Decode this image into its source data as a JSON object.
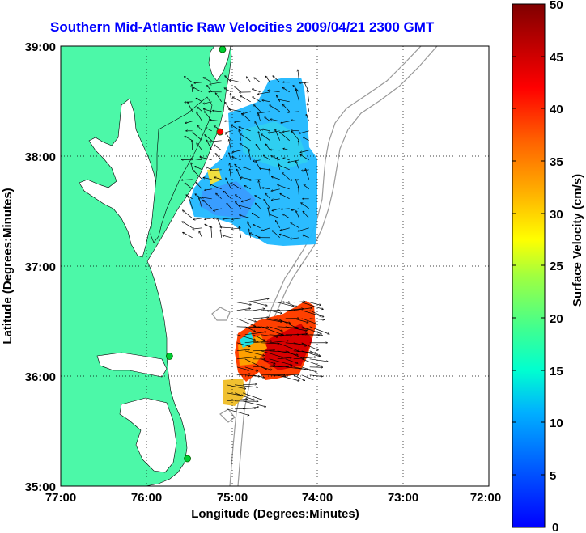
{
  "title": "Southern Mid-Atlantic Raw Velocities 2009/04/21 2300 GMT",
  "xlabel": "Longitude (Degrees:Minutes)",
  "ylabel": "Latitude (Degrees:Minutes)",
  "colorbar": {
    "label": "Surface Velocity (cm/s)",
    "ticks": [
      "0",
      "5",
      "10",
      "15",
      "20",
      "25",
      "30",
      "35",
      "40",
      "45",
      "50"
    ],
    "range": [
      0,
      50
    ]
  },
  "x_ticks": [
    "77:00",
    "76:00",
    "75:00",
    "74:00",
    "73:00",
    "72:00"
  ],
  "y_ticks": [
    "39:00",
    "38:00",
    "37:00",
    "36:00",
    "35:00"
  ],
  "colors": {
    "land": "#4cf8a8",
    "title": "#0000ff",
    "ocean": "#ffffff",
    "station": "#00cc33",
    "station_alt": "#ff0000"
  },
  "chart_data": {
    "type": "map",
    "xlim": [
      -77,
      -72
    ],
    "ylim": [
      35,
      39
    ],
    "grid": true,
    "stations": [
      {
        "lon": -75.11,
        "lat": 38.97,
        "color": "green"
      },
      {
        "lon": -75.14,
        "lat": 38.22,
        "color": "red"
      },
      {
        "lon": -75.73,
        "lat": 36.18,
        "color": "green"
      },
      {
        "lon": -75.52,
        "lat": 35.25,
        "color": "green"
      }
    ],
    "velocity_regions": [
      {
        "name": "north",
        "lon_range": [
          -75.5,
          -74.05
        ],
        "lat_range": [
          37.2,
          38.7
        ],
        "speed_range_cm_s": [
          5,
          25
        ]
      },
      {
        "name": "south",
        "lon_range": [
          -74.98,
          -74.0
        ],
        "lat_range": [
          35.95,
          36.7
        ],
        "speed_range_cm_s": [
          15,
          50
        ]
      },
      {
        "name": "south-small",
        "lon_range": [
          -75.1,
          -74.8
        ],
        "lat_range": [
          35.65,
          35.95
        ],
        "speed_range_cm_s": [
          20,
          30
        ]
      }
    ]
  }
}
